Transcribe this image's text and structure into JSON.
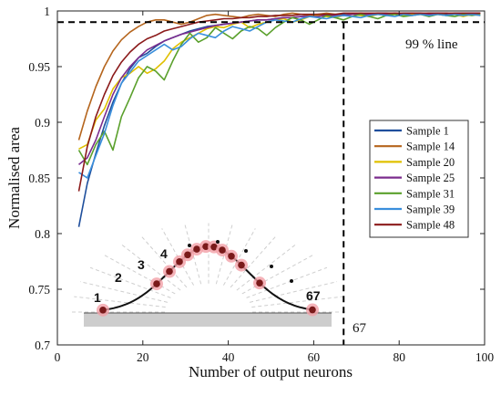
{
  "chart_data": {
    "type": "line",
    "title": "",
    "xlabel": "Number of output neurons",
    "ylabel": "Normalised area",
    "xlim": [
      0,
      100
    ],
    "ylim": [
      0.7,
      1.0
    ],
    "xticks": [
      "0",
      "20",
      "40",
      "60",
      "80",
      "100"
    ],
    "yticks": [
      "0.7",
      "0.75",
      "0.8",
      "0.85",
      "0.9",
      "0.95",
      "1"
    ],
    "grid": false,
    "legend_position": "right",
    "x": [
      5,
      7,
      9,
      11,
      13,
      15,
      17,
      19,
      21,
      23,
      25,
      27,
      29,
      31,
      33,
      35,
      37,
      39,
      41,
      43,
      45,
      47,
      49,
      51,
      53,
      55,
      57,
      59,
      61,
      63,
      65,
      67,
      69,
      71,
      73,
      75,
      77,
      79,
      81,
      83,
      85,
      87,
      89,
      91,
      93,
      95,
      97,
      99
    ],
    "series": [
      {
        "name": "Sample 1",
        "color": "#1f4f9c",
        "values": [
          0.806,
          0.845,
          0.872,
          0.897,
          0.918,
          0.935,
          0.948,
          0.958,
          0.962,
          0.968,
          0.973,
          0.976,
          0.979,
          0.982,
          0.984,
          0.986,
          0.987,
          0.988,
          0.989,
          0.99,
          0.991,
          0.992,
          0.992,
          0.993,
          0.994,
          0.994,
          0.995,
          0.995,
          0.996,
          0.996,
          0.996,
          0.997,
          0.997,
          0.997,
          0.997,
          0.998,
          0.998,
          0.997,
          0.998,
          0.998,
          0.997,
          0.998,
          0.998,
          0.997,
          0.998,
          0.998,
          0.998,
          0.998
        ]
      },
      {
        "name": "Sample 14",
        "color": "#b5651d",
        "values": [
          0.884,
          0.91,
          0.932,
          0.95,
          0.964,
          0.974,
          0.981,
          0.986,
          0.99,
          0.992,
          0.992,
          0.99,
          0.988,
          0.99,
          0.993,
          0.996,
          0.997,
          0.996,
          0.995,
          0.994,
          0.996,
          0.997,
          0.996,
          0.995,
          0.997,
          0.998,
          0.997,
          0.996,
          0.997,
          0.998,
          0.997,
          0.996,
          0.997,
          0.998,
          0.997,
          0.998,
          0.997,
          0.998,
          0.997,
          0.998,
          0.997,
          0.998,
          0.997,
          0.998,
          0.997,
          0.998,
          0.997,
          0.998
        ]
      },
      {
        "name": "Sample 20",
        "color": "#e0c000",
        "values": [
          0.876,
          0.88,
          0.902,
          0.912,
          0.93,
          0.94,
          0.944,
          0.95,
          0.944,
          0.948,
          0.955,
          0.966,
          0.972,
          0.976,
          0.98,
          0.984,
          0.986,
          0.985,
          0.988,
          0.99,
          0.985,
          0.988,
          0.99,
          0.992,
          0.993,
          0.99,
          0.992,
          0.995,
          0.996,
          0.995,
          0.994,
          0.996,
          0.997,
          0.996,
          0.995,
          0.997,
          0.996,
          0.997,
          0.996,
          0.997,
          0.998,
          0.996,
          0.997,
          0.996,
          0.997,
          0.995,
          0.997,
          0.996
        ]
      },
      {
        "name": "Sample 25",
        "color": "#7b2d8e",
        "values": [
          0.862,
          0.868,
          0.884,
          0.905,
          0.925,
          0.94,
          0.95,
          0.958,
          0.965,
          0.969,
          0.973,
          0.976,
          0.979,
          0.981,
          0.983,
          0.985,
          0.987,
          0.988,
          0.989,
          0.99,
          0.991,
          0.992,
          0.992,
          0.993,
          0.994,
          0.994,
          0.995,
          0.995,
          0.995,
          0.996,
          0.996,
          0.996,
          0.997,
          0.997,
          0.997,
          0.997,
          0.997,
          0.998,
          0.997,
          0.998,
          0.998,
          0.997,
          0.998,
          0.998,
          0.997,
          0.998,
          0.998,
          0.998
        ]
      },
      {
        "name": "Sample 31",
        "color": "#5aa02c",
        "values": [
          0.875,
          0.862,
          0.88,
          0.892,
          0.875,
          0.905,
          0.922,
          0.94,
          0.95,
          0.946,
          0.938,
          0.955,
          0.97,
          0.98,
          0.972,
          0.976,
          0.985,
          0.98,
          0.975,
          0.982,
          0.986,
          0.984,
          0.978,
          0.985,
          0.99,
          0.994,
          0.992,
          0.988,
          0.992,
          0.996,
          0.994,
          0.992,
          0.995,
          0.997,
          0.995,
          0.993,
          0.996,
          0.997,
          0.995,
          0.996,
          0.997,
          0.995,
          0.997,
          0.996,
          0.995,
          0.997,
          0.996,
          0.997
        ]
      },
      {
        "name": "Sample 39",
        "color": "#3a8fdc",
        "values": [
          0.855,
          0.85,
          0.87,
          0.89,
          0.915,
          0.935,
          0.945,
          0.955,
          0.96,
          0.965,
          0.97,
          0.965,
          0.968,
          0.975,
          0.98,
          0.978,
          0.976,
          0.982,
          0.986,
          0.984,
          0.982,
          0.986,
          0.99,
          0.992,
          0.991,
          0.99,
          0.993,
          0.995,
          0.994,
          0.993,
          0.995,
          0.996,
          0.995,
          0.994,
          0.996,
          0.997,
          0.996,
          0.995,
          0.997,
          0.996,
          0.997,
          0.996,
          0.997,
          0.996,
          0.997,
          0.996,
          0.997,
          0.996
        ]
      },
      {
        "name": "Sample 48",
        "color": "#8b1a1a",
        "values": [
          0.838,
          0.878,
          0.905,
          0.925,
          0.942,
          0.954,
          0.963,
          0.97,
          0.975,
          0.978,
          0.982,
          0.984,
          0.986,
          0.988,
          0.99,
          0.991,
          0.992,
          0.993,
          0.993,
          0.994,
          0.994,
          0.995,
          0.995,
          0.996,
          0.996,
          0.996,
          0.997,
          0.997,
          0.997,
          0.997,
          0.997,
          0.998,
          0.998,
          0.998,
          0.998,
          0.998,
          0.998,
          0.998,
          0.998,
          0.998,
          0.998,
          0.998,
          0.998,
          0.998,
          0.998,
          0.998,
          0.998,
          0.998
        ]
      }
    ],
    "reference_lines": {
      "horizontal": {
        "y": 0.99,
        "label": "99 % line"
      },
      "vertical": {
        "x": 67,
        "label": "67"
      }
    },
    "inset": {
      "labels": [
        "1",
        "2",
        "3",
        "4",
        "67"
      ]
    }
  }
}
